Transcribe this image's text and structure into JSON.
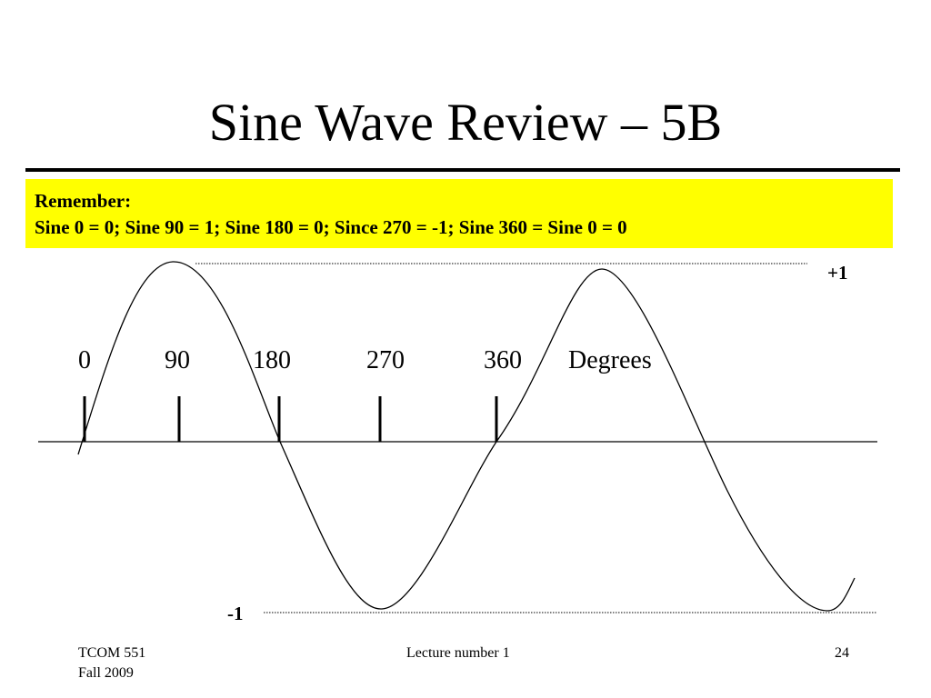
{
  "slide": {
    "title": "Sine Wave Review – 5B"
  },
  "note": {
    "heading": "Remember:",
    "text": "Sine 0 = 0; Sine 90 = 1; Sine 180 = 0; Since 270 = -1; Sine 360 = Sine 0 = 0"
  },
  "diagram": {
    "max_label": "+1",
    "min_label": "-1",
    "ticks": [
      "0",
      "90",
      "180",
      "270",
      "360"
    ],
    "unit_label": "Degrees"
  },
  "footer": {
    "course": "TCOM 551",
    "term": "Fall 2009",
    "lecture": "Lecture number 1",
    "page": "24"
  }
}
